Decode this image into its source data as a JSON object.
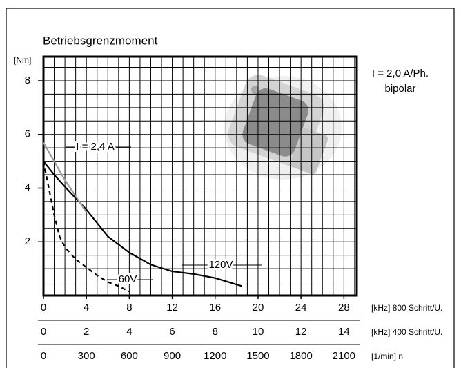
{
  "chart_data": {
    "type": "line",
    "title": "Betriebsgrenzmoment",
    "ylabel": "[Nm]",
    "annotations": [
      "I = 2,0 A/Ph.",
      "bipolar"
    ],
    "xlim": [
      0,
      29.2
    ],
    "xticks": [
      0,
      4,
      8,
      12,
      16,
      20,
      24,
      28
    ],
    "xlabel": "[kHz] 800 Schritt/U.",
    "x2lim": [
      0,
      14.6
    ],
    "x2ticks": [
      0,
      2,
      4,
      6,
      8,
      10,
      12,
      14
    ],
    "x2label": "[kHz] 400 Schritt/U.",
    "x3lim": [
      0,
      2190
    ],
    "x3ticks": [
      0,
      300,
      600,
      900,
      1200,
      1500,
      1800,
      2100
    ],
    "x3label": "[1/min] n",
    "ylim": [
      0,
      8.9
    ],
    "yticks": [
      2,
      4,
      6,
      8
    ],
    "xgrid": [
      1,
      2,
      3,
      4,
      5,
      6,
      7,
      8,
      9,
      10,
      11,
      12,
      13,
      14,
      15,
      16,
      17,
      18,
      19,
      20,
      21,
      22,
      23,
      24,
      25,
      26,
      27,
      28,
      29
    ],
    "ygrid": [
      0.5,
      1,
      1.5,
      2,
      2.5,
      3,
      3.5,
      4,
      4.5,
      5,
      5.5,
      6,
      6.5,
      7,
      7.5,
      8,
      8.5
    ],
    "series": [
      {
        "name": "120V",
        "color": "#000000",
        "dash": "solid",
        "x": [
          0,
          1,
          2,
          4,
          6,
          8,
          10,
          12,
          14,
          16,
          18.5
        ],
        "values": [
          5.0,
          4.5,
          4.05,
          3.2,
          2.2,
          1.6,
          1.15,
          0.9,
          0.8,
          0.65,
          0.35
        ]
      },
      {
        "name": "60V",
        "color": "#000000",
        "dash": "dashed",
        "x": [
          0,
          0.5,
          1,
          1.5,
          2,
          3,
          4,
          5,
          6,
          7,
          8
        ],
        "values": [
          5.0,
          4.0,
          3.0,
          2.2,
          1.8,
          1.35,
          1.05,
          0.75,
          0.5,
          0.35,
          0.15
        ]
      },
      {
        "name": "I = 2,4 A",
        "color": "#999999",
        "dash": "solid",
        "x": [
          0,
          1,
          2,
          3,
          4
        ],
        "values": [
          5.7,
          5.0,
          4.3,
          3.7,
          3.1
        ]
      }
    ]
  }
}
